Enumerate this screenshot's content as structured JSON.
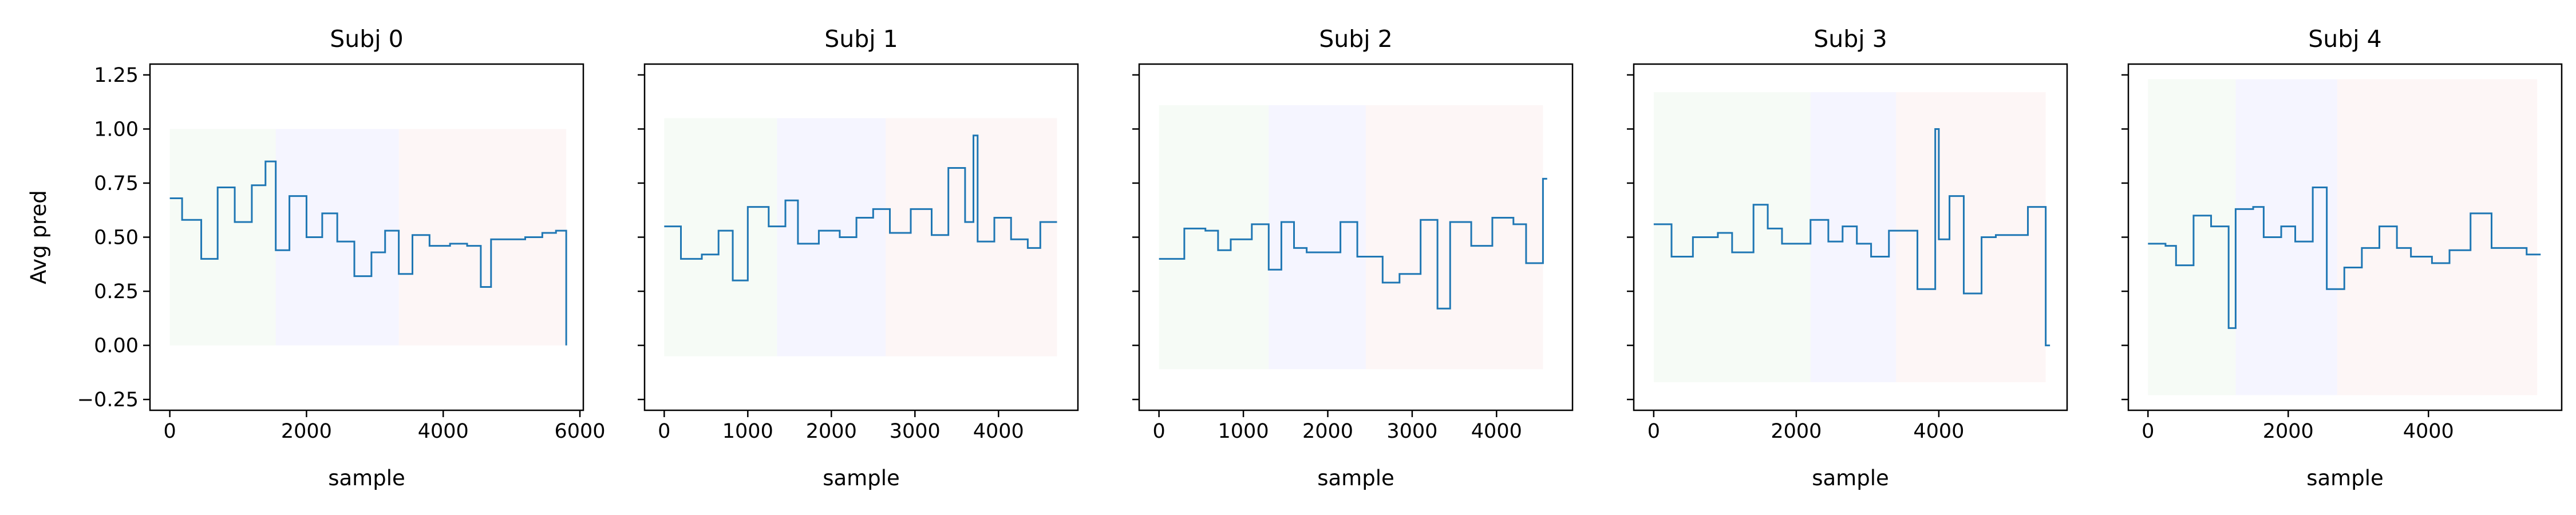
{
  "chart_data": {
    "type": "line",
    "ylabel": "Avg pred",
    "ylim": [
      -0.3,
      1.3
    ],
    "yticks": [
      -0.25,
      0.0,
      0.25,
      0.5,
      0.75,
      1.0,
      1.25
    ],
    "ytick_labels": [
      "−0.25",
      "0.00",
      "0.25",
      "0.50",
      "0.75",
      "1.00",
      "1.25"
    ],
    "grid": false,
    "line_color": "#1f77b4",
    "band_colors": [
      "#2ca02c",
      "#1f1fff",
      "#d62728"
    ],
    "band_opacity": 0.045,
    "subplots": [
      {
        "title": "Subj 0",
        "xlabel": "sample",
        "xlim": [
          -290,
          6050
        ],
        "xticks": [
          0,
          2000,
          4000,
          6000
        ],
        "xtick_labels": [
          "0",
          "2000",
          "4000",
          "6000"
        ],
        "bands": [
          {
            "x0": 0,
            "x1": 1550,
            "y0": 0.0,
            "y1": 1.0
          },
          {
            "x0": 1550,
            "x1": 3350,
            "y0": 0.0,
            "y1": 1.0
          },
          {
            "x0": 3350,
            "x1": 5800,
            "y0": 0.0,
            "y1": 1.0
          }
        ],
        "steps": [
          [
            0,
            0.68
          ],
          [
            180,
            0.58
          ],
          [
            460,
            0.4
          ],
          [
            700,
            0.73
          ],
          [
            950,
            0.57
          ],
          [
            1200,
            0.74
          ],
          [
            1400,
            0.85
          ],
          [
            1550,
            0.44
          ],
          [
            1750,
            0.69
          ],
          [
            2000,
            0.5
          ],
          [
            2230,
            0.61
          ],
          [
            2450,
            0.48
          ],
          [
            2700,
            0.32
          ],
          [
            2950,
            0.43
          ],
          [
            3150,
            0.53
          ],
          [
            3350,
            0.33
          ],
          [
            3550,
            0.51
          ],
          [
            3800,
            0.46
          ],
          [
            4100,
            0.47
          ],
          [
            4350,
            0.46
          ],
          [
            4550,
            0.27
          ],
          [
            4700,
            0.49
          ],
          [
            5000,
            0.49
          ],
          [
            5200,
            0.5
          ],
          [
            5450,
            0.52
          ],
          [
            5650,
            0.53
          ],
          [
            5800,
            0.0
          ]
        ]
      },
      {
        "title": "Subj 1",
        "xlabel": "sample",
        "xlim": [
          -235,
          4950
        ],
        "xticks": [
          0,
          1000,
          2000,
          3000,
          4000
        ],
        "xtick_labels": [
          "0",
          "1000",
          "2000",
          "3000",
          "4000"
        ],
        "bands": [
          {
            "x0": 0,
            "x1": 1350,
            "y0": -0.05,
            "y1": 1.05
          },
          {
            "x0": 1350,
            "x1": 2650,
            "y0": -0.05,
            "y1": 1.05
          },
          {
            "x0": 2650,
            "x1": 4700,
            "y0": -0.05,
            "y1": 1.05
          }
        ],
        "steps": [
          [
            0,
            0.55
          ],
          [
            200,
            0.4
          ],
          [
            450,
            0.42
          ],
          [
            650,
            0.53
          ],
          [
            820,
            0.3
          ],
          [
            1000,
            0.64
          ],
          [
            1250,
            0.55
          ],
          [
            1450,
            0.67
          ],
          [
            1600,
            0.47
          ],
          [
            1850,
            0.53
          ],
          [
            2100,
            0.5
          ],
          [
            2300,
            0.59
          ],
          [
            2500,
            0.63
          ],
          [
            2700,
            0.52
          ],
          [
            2950,
            0.63
          ],
          [
            3200,
            0.51
          ],
          [
            3400,
            0.82
          ],
          [
            3600,
            0.57
          ],
          [
            3700,
            0.97
          ],
          [
            3750,
            0.48
          ],
          [
            3950,
            0.59
          ],
          [
            4150,
            0.49
          ],
          [
            4350,
            0.45
          ],
          [
            4500,
            0.57
          ],
          [
            4700,
            0.57
          ]
        ]
      },
      {
        "title": "Subj 2",
        "xlabel": "sample",
        "xlim": [
          -235,
          4900
        ],
        "xticks": [
          0,
          1000,
          2000,
          3000,
          4000
        ],
        "xtick_labels": [
          "0",
          "1000",
          "2000",
          "3000",
          "4000"
        ],
        "bands": [
          {
            "x0": 0,
            "x1": 1300,
            "y0": -0.11,
            "y1": 1.11
          },
          {
            "x0": 1300,
            "x1": 2450,
            "y0": -0.11,
            "y1": 1.11
          },
          {
            "x0": 2450,
            "x1": 4550,
            "y0": -0.11,
            "y1": 1.11
          }
        ],
        "steps": [
          [
            0,
            0.4
          ],
          [
            300,
            0.54
          ],
          [
            550,
            0.53
          ],
          [
            700,
            0.44
          ],
          [
            850,
            0.49
          ],
          [
            1100,
            0.56
          ],
          [
            1300,
            0.35
          ],
          [
            1450,
            0.57
          ],
          [
            1600,
            0.45
          ],
          [
            1750,
            0.43
          ],
          [
            1950,
            0.43
          ],
          [
            2150,
            0.57
          ],
          [
            2350,
            0.41
          ],
          [
            2650,
            0.29
          ],
          [
            2850,
            0.33
          ],
          [
            3100,
            0.58
          ],
          [
            3300,
            0.17
          ],
          [
            3450,
            0.57
          ],
          [
            3700,
            0.46
          ],
          [
            3950,
            0.59
          ],
          [
            4200,
            0.56
          ],
          [
            4350,
            0.38
          ],
          [
            4550,
            0.77
          ],
          [
            4600,
            0.77
          ]
        ]
      },
      {
        "title": "Subj 3",
        "xlabel": "sample",
        "xlim": [
          -280,
          5800
        ],
        "xticks": [
          0,
          2000,
          4000
        ],
        "xtick_labels": [
          "0",
          "2000",
          "4000"
        ],
        "bands": [
          {
            "x0": 0,
            "x1": 2200,
            "y0": -0.17,
            "y1": 1.17
          },
          {
            "x0": 2200,
            "x1": 3400,
            "y0": -0.17,
            "y1": 1.17
          },
          {
            "x0": 3400,
            "x1": 5500,
            "y0": -0.17,
            "y1": 1.17
          }
        ],
        "steps": [
          [
            0,
            0.56
          ],
          [
            250,
            0.41
          ],
          [
            550,
            0.5
          ],
          [
            900,
            0.52
          ],
          [
            1100,
            0.43
          ],
          [
            1400,
            0.65
          ],
          [
            1600,
            0.54
          ],
          [
            1800,
            0.47
          ],
          [
            2200,
            0.58
          ],
          [
            2450,
            0.48
          ],
          [
            2650,
            0.55
          ],
          [
            2850,
            0.47
          ],
          [
            3050,
            0.41
          ],
          [
            3300,
            0.53
          ],
          [
            3700,
            0.26
          ],
          [
            3950,
            1.0
          ],
          [
            4000,
            0.49
          ],
          [
            4150,
            0.69
          ],
          [
            4350,
            0.24
          ],
          [
            4600,
            0.5
          ],
          [
            4800,
            0.51
          ],
          [
            5050,
            0.51
          ],
          [
            5250,
            0.64
          ],
          [
            5500,
            0.0
          ],
          [
            5560,
            0.0
          ]
        ]
      },
      {
        "title": "Subj 4",
        "xlabel": "sample",
        "xlim": [
          -280,
          5900
        ],
        "xticks": [
          0,
          2000,
          4000
        ],
        "xtick_labels": [
          "0",
          "2000",
          "4000"
        ],
        "bands": [
          {
            "x0": 0,
            "x1": 1250,
            "y0": -0.23,
            "y1": 1.23
          },
          {
            "x0": 1250,
            "x1": 2700,
            "y0": -0.23,
            "y1": 1.23
          },
          {
            "x0": 2700,
            "x1": 5550,
            "y0": -0.23,
            "y1": 1.23
          }
        ],
        "steps": [
          [
            0,
            0.47
          ],
          [
            250,
            0.46
          ],
          [
            400,
            0.37
          ],
          [
            650,
            0.6
          ],
          [
            900,
            0.55
          ],
          [
            1150,
            0.08
          ],
          [
            1250,
            0.63
          ],
          [
            1500,
            0.64
          ],
          [
            1650,
            0.5
          ],
          [
            1900,
            0.55
          ],
          [
            2100,
            0.48
          ],
          [
            2350,
            0.73
          ],
          [
            2550,
            0.26
          ],
          [
            2800,
            0.36
          ],
          [
            3050,
            0.45
          ],
          [
            3300,
            0.55
          ],
          [
            3550,
            0.45
          ],
          [
            3750,
            0.41
          ],
          [
            4050,
            0.38
          ],
          [
            4300,
            0.44
          ],
          [
            4600,
            0.61
          ],
          [
            4900,
            0.45
          ],
          [
            5150,
            0.45
          ],
          [
            5400,
            0.42
          ],
          [
            5600,
            0.42
          ]
        ]
      }
    ]
  }
}
